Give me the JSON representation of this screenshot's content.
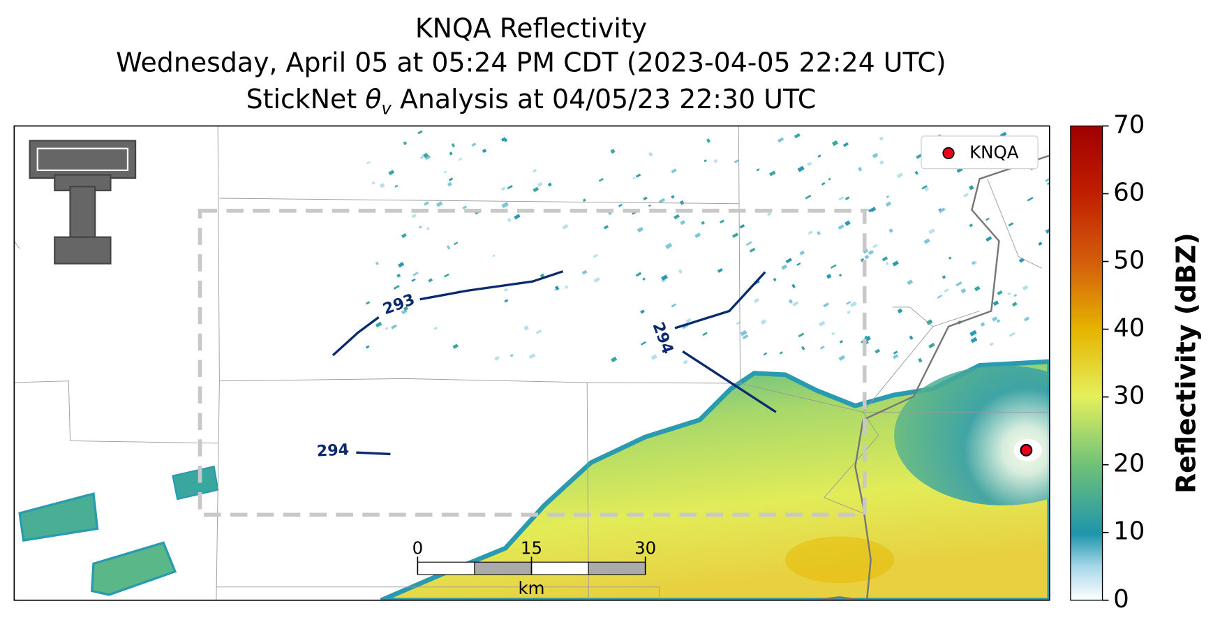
{
  "title": {
    "line1": "KNQA Reflectivity",
    "line2": "Wednesday, April 05 at 05:24 PM CDT (2023-04-05 22:24 UTC)",
    "line3": {
      "before": "StickNet ",
      "symbol": "θ",
      "subscript": "v",
      "after": " Analysis at 04/05/23 22:30 UTC"
    }
  },
  "legend": {
    "label": "KNQA",
    "color": "#e8001c"
  },
  "colorbar": {
    "label": "Reflectivity (dBZ)",
    "lim": [
      0,
      70
    ],
    "ticks": [
      0,
      10,
      20,
      30,
      40,
      50,
      60,
      70
    ]
  },
  "contours": [
    {
      "label": "293"
    },
    {
      "label": "294"
    },
    {
      "label": "294"
    }
  ],
  "scale_bar": {
    "ticks": [
      0,
      15,
      30
    ],
    "unit": "km"
  }
}
